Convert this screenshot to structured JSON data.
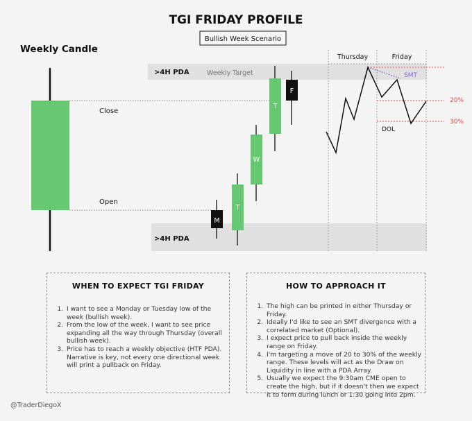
{
  "title": "TGI FRIDAY PROFILE",
  "subtitle": "Bullish Week Scenario",
  "weekly_candle_label": "Weekly Candle",
  "close_label": "Close",
  "open_label": "Open",
  "pda_top_label": ">4H PDA",
  "weekly_target_label": "Weekly Target",
  "pda_bottom_label": ">4H PDA",
  "day_letters": [
    "M",
    "T",
    "W",
    "T",
    "F"
  ],
  "thursday_label": "Thursday",
  "friday_label": "Friday",
  "smt_label": "SMT",
  "dol_label": "DOL",
  "pct_20_label": "20%",
  "pct_30_label": "30%",
  "colors": {
    "bull": "#66c870",
    "bear": "#111111",
    "red": "#d9474a",
    "smt": "#8a5fd6",
    "band": "#e0e0e0"
  },
  "left_panel": {
    "title": "WHEN TO EXPECT TGI FRIDAY",
    "items": [
      "I want to see a Monday or Tuesday low of the week (bullish week).",
      "From the low of the week, I want to see price expanding all the way through Thursday (overall bullish week).",
      "Price has to reach a weekly objective (HTF PDA). Narrative is key, not every one directional week will print a pullback on Friday."
    ]
  },
  "right_panel": {
    "title": "HOW TO APPROACH IT",
    "items": [
      "The high can be printed in either Thursday or Friday.",
      "Ideally I'd like to see an SMT divergence with a correlated market (Optional).",
      "I expect price to pull back inside the weekly range on Friday.",
      "I'm targeting a move of 20 to 30% of the weekly range. These levels will act as the Draw on Liquidity in line with a PDA Array.",
      "Usually we expect the 9:30am CME open to create the high, but if it doesn't then we expect it to form during lunch or 1:30 going into 2pm."
    ]
  },
  "credit": "@TraderDiegoX"
}
